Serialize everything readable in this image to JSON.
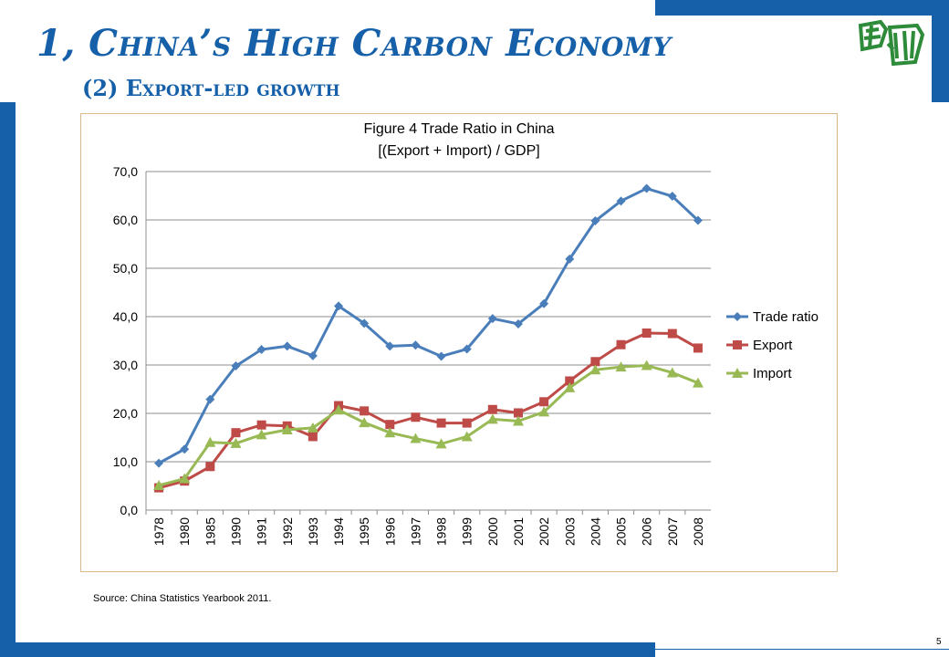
{
  "slide": {
    "title": "1, China’s High Carbon Economy",
    "subtitle": "(2) Export-led growth",
    "source": "Source: China Statistics Yearbook 2011.",
    "page_number": "5",
    "accent_color": "#1560a8",
    "logo_icon": "university-logo-icon",
    "logo_color": "#2e8b3a"
  },
  "chart_data": {
    "type": "line",
    "title": "Figure 4  Trade Ratio in China",
    "subtitle": "[(Export + Import) / GDP]",
    "categories": [
      "1978",
      "1980",
      "1985",
      "1990",
      "1991",
      "1992",
      "1993",
      "1994",
      "1995",
      "1996",
      "1997",
      "1998",
      "1999",
      "2000",
      "2001",
      "2002",
      "2003",
      "2004",
      "2005",
      "2006",
      "2007",
      "2008"
    ],
    "ylim": [
      0,
      70
    ],
    "yticks": [
      "0,0",
      "10,0",
      "20,0",
      "30,0",
      "40,0",
      "50,0",
      "60,0",
      "70,0"
    ],
    "grid": true,
    "legend_position": "right",
    "series": [
      {
        "name": "Trade ratio",
        "color": "#4a7ebb",
        "marker": "diamond",
        "values": [
          9.7,
          12.6,
          22.9,
          29.8,
          33.2,
          33.9,
          31.9,
          42.2,
          38.6,
          33.9,
          34.1,
          31.8,
          33.3,
          39.6,
          38.5,
          42.7,
          51.9,
          59.8,
          63.9,
          66.5,
          64.9,
          59.9
        ]
      },
      {
        "name": "Export",
        "color": "#be4b48",
        "marker": "square",
        "values": [
          4.6,
          6.0,
          9.0,
          16.0,
          17.6,
          17.4,
          15.2,
          21.6,
          20.5,
          17.7,
          19.2,
          18.0,
          18.0,
          20.8,
          20.1,
          22.4,
          26.7,
          30.7,
          34.2,
          36.6,
          36.5,
          33.5
        ]
      },
      {
        "name": "Import",
        "color": "#98b954",
        "marker": "triangle",
        "values": [
          5.1,
          6.5,
          14.0,
          13.8,
          15.6,
          16.6,
          17.0,
          20.7,
          18.1,
          16.0,
          14.8,
          13.7,
          15.2,
          18.8,
          18.4,
          20.3,
          25.3,
          29.0,
          29.6,
          29.9,
          28.4,
          26.3
        ]
      }
    ]
  }
}
